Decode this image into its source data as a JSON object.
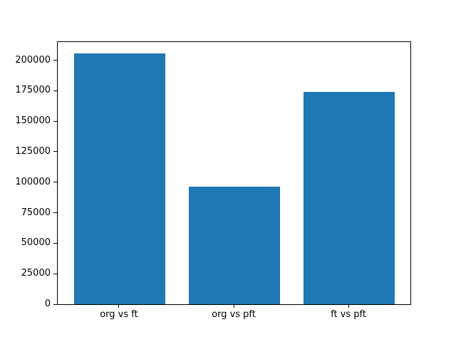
{
  "chart_data": {
    "type": "bar",
    "categories": [
      "org vs ft",
      "org vs pft",
      "ft vs pft"
    ],
    "values": [
      205800,
      96200,
      173800
    ],
    "yticks": [
      0,
      25000,
      50000,
      75000,
      100000,
      125000,
      150000,
      175000,
      200000
    ],
    "ylim": [
      0,
      215500
    ],
    "xlim": [
      -0.54,
      2.54
    ],
    "bar_width": 0.8,
    "bar_color": "#1f77b4",
    "axis_color": "#000000",
    "background_color": "#ffffff",
    "grid": false,
    "legend": "none"
  }
}
